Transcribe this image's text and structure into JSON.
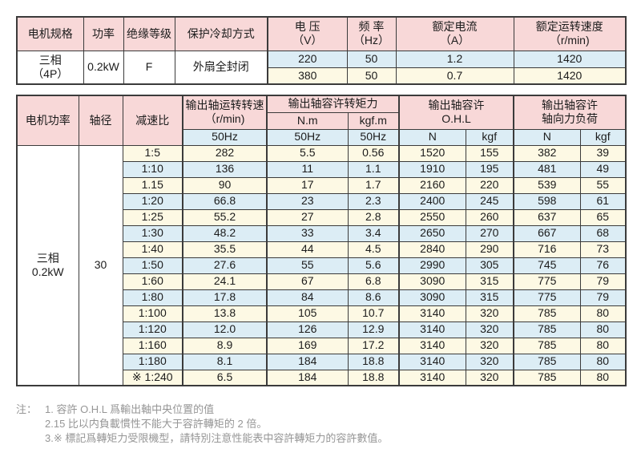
{
  "colors": {
    "header_pink": "#f8d8d8",
    "row_blue": "#dcedf5",
    "row_cream": "#fdf9e4",
    "border": "#3b3b3b",
    "note_text": "#969696"
  },
  "table1": {
    "headers": {
      "spec": "电机规格",
      "power": "功率",
      "insulation": "绝缘等级",
      "cooling": "保护冷却方式",
      "voltage_l1": "电 压",
      "voltage_l2": "（V）",
      "freq_l1": "频 率",
      "freq_l2": "（Hz）",
      "current_l1": "额定电流",
      "current_l2": "（A）",
      "speed_l1": "额定运转速度",
      "speed_l2": "（r/min)"
    },
    "spec_l1": "三相",
    "spec_l2": "（4P）",
    "power": "0.2kW",
    "insulation": "F",
    "cooling": "外扇全封闭",
    "rows": [
      {
        "voltage": "220",
        "freq": "50",
        "current": "1.2",
        "speed": "1420"
      },
      {
        "voltage": "380",
        "freq": "50",
        "current": "0.7",
        "speed": "1420"
      }
    ]
  },
  "table2": {
    "headers": {
      "motor_power": "电机功率",
      "shaft_dia": "轴径",
      "ratio": "减速比",
      "out_speed_l1": "输出轴运转转速",
      "out_speed_l2": "（r/min)",
      "torque_group": "输出轴容许转矩力",
      "nm": "N.m",
      "kgfm": "kgf.m",
      "ohl_l1": "输出轴容许",
      "ohl_l2": "O.H.L",
      "axial_l1": "输出轴容许",
      "axial_l2": "轴向力负荷",
      "hz": "50Hz",
      "n": "N",
      "kgf": "kgf"
    },
    "motor_power_l1": "三相",
    "motor_power_l2": "0.2kW",
    "shaft_dia": "30",
    "rows": [
      [
        "1:5",
        "282",
        "5.5",
        "0.56",
        "1520",
        "155",
        "382",
        "39"
      ],
      [
        "1:10",
        "136",
        "11",
        "1.1",
        "1910",
        "195",
        "481",
        "49"
      ],
      [
        "1.15",
        "90",
        "17",
        "1.7",
        "2160",
        "220",
        "539",
        "55"
      ],
      [
        "1:20",
        "66.8",
        "23",
        "2.3",
        "2400",
        "245",
        "598",
        "61"
      ],
      [
        "1:25",
        "55.2",
        "27",
        "2.8",
        "2550",
        "260",
        "637",
        "65"
      ],
      [
        "1:30",
        "48.2",
        "33",
        "3.4",
        "2650",
        "270",
        "667",
        "68"
      ],
      [
        "1:40",
        "35.5",
        "44",
        "4.5",
        "2840",
        "290",
        "716",
        "73"
      ],
      [
        "1:50",
        "27.6",
        "55",
        "5.6",
        "2990",
        "305",
        "745",
        "76"
      ],
      [
        "1:60",
        "24.1",
        "67",
        "6.8",
        "3090",
        "315",
        "775",
        "79"
      ],
      [
        "1:80",
        "17.8",
        "84",
        "8.6",
        "3090",
        "315",
        "775",
        "79"
      ],
      [
        "1:100",
        "13.8",
        "105",
        "10.7",
        "3140",
        "320",
        "785",
        "80"
      ],
      [
        "1:120",
        "12.0",
        "126",
        "12.9",
        "3140",
        "320",
        "785",
        "80"
      ],
      [
        "1:160",
        "8.9",
        "169",
        "17.2",
        "3140",
        "320",
        "785",
        "80"
      ],
      [
        "1:180",
        "8.1",
        "184",
        "18.8",
        "3140",
        "320",
        "785",
        "80"
      ],
      [
        "※ 1:240",
        "6.5",
        "184",
        "18.8",
        "3140",
        "320",
        "785",
        "80"
      ]
    ]
  },
  "notes": {
    "label": "注：",
    "items": [
      "1. 容許 O.H.L 爲輸出軸中央位置的值",
      "2.15 比以内負載慣性不能大于容許轉矩的 2 倍。",
      "3.※ 標記爲轉矩力受限機型，請特別注意性能表中容許轉矩力的容許數值。"
    ]
  }
}
